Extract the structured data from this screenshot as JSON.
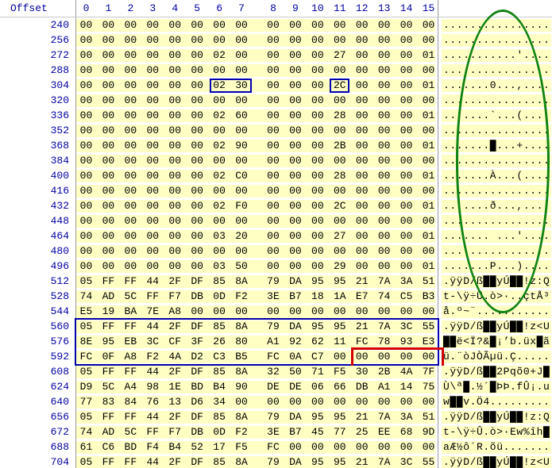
{
  "header": {
    "offset_label": "Offset",
    "columns": [
      "0",
      "1",
      "2",
      "3",
      "4",
      "5",
      "6",
      "7",
      "8",
      "9",
      "10",
      "11",
      "12",
      "13",
      "14",
      "15"
    ]
  },
  "rows": [
    {
      "offset": "240",
      "bytes": [
        "00",
        "00",
        "00",
        "00",
        "00",
        "00",
        "00",
        "00",
        "00",
        "00",
        "00",
        "00",
        "00",
        "00",
        "00",
        "00"
      ],
      "ascii": "................"
    },
    {
      "offset": "256",
      "bytes": [
        "00",
        "00",
        "00",
        "00",
        "00",
        "00",
        "00",
        "00",
        "00",
        "00",
        "00",
        "00",
        "00",
        "00",
        "00",
        "00"
      ],
      "ascii": "................"
    },
    {
      "offset": "272",
      "bytes": [
        "00",
        "00",
        "00",
        "00",
        "00",
        "00",
        "02",
        "00",
        "00",
        "00",
        "00",
        "27",
        "00",
        "00",
        "00",
        "01"
      ],
      "ascii": "...........'...."
    },
    {
      "offset": "288",
      "bytes": [
        "00",
        "00",
        "00",
        "00",
        "00",
        "00",
        "00",
        "00",
        "00",
        "00",
        "00",
        "00",
        "00",
        "00",
        "00",
        "00"
      ],
      "ascii": "................"
    },
    {
      "offset": "304",
      "bytes": [
        "00",
        "00",
        "00",
        "00",
        "00",
        "00",
        "02",
        "30",
        "00",
        "00",
        "00",
        "2C",
        "00",
        "00",
        "00",
        "01"
      ],
      "ascii": ".......0...,...."
    },
    {
      "offset": "320",
      "bytes": [
        "00",
        "00",
        "00",
        "00",
        "00",
        "00",
        "00",
        "00",
        "00",
        "00",
        "00",
        "00",
        "00",
        "00",
        "00",
        "00"
      ],
      "ascii": "................"
    },
    {
      "offset": "336",
      "bytes": [
        "00",
        "00",
        "00",
        "00",
        "00",
        "00",
        "02",
        "60",
        "00",
        "00",
        "00",
        "28",
        "00",
        "00",
        "00",
        "01"
      ],
      "ascii": ".......`...(...."
    },
    {
      "offset": "352",
      "bytes": [
        "00",
        "00",
        "00",
        "00",
        "00",
        "00",
        "00",
        "00",
        "00",
        "00",
        "00",
        "00",
        "00",
        "00",
        "00",
        "00"
      ],
      "ascii": "................"
    },
    {
      "offset": "368",
      "bytes": [
        "00",
        "00",
        "00",
        "00",
        "00",
        "00",
        "02",
        "90",
        "00",
        "00",
        "00",
        "2B",
        "00",
        "00",
        "00",
        "01"
      ],
      "ascii": ".......█...+...."
    },
    {
      "offset": "384",
      "bytes": [
        "00",
        "00",
        "00",
        "00",
        "00",
        "00",
        "00",
        "00",
        "00",
        "00",
        "00",
        "00",
        "00",
        "00",
        "00",
        "00"
      ],
      "ascii": "................"
    },
    {
      "offset": "400",
      "bytes": [
        "00",
        "00",
        "00",
        "00",
        "00",
        "00",
        "02",
        "C0",
        "00",
        "00",
        "00",
        "28",
        "00",
        "00",
        "00",
        "01"
      ],
      "ascii": ".......À...(...."
    },
    {
      "offset": "416",
      "bytes": [
        "00",
        "00",
        "00",
        "00",
        "00",
        "00",
        "00",
        "00",
        "00",
        "00",
        "00",
        "00",
        "00",
        "00",
        "00",
        "00"
      ],
      "ascii": "................"
    },
    {
      "offset": "432",
      "bytes": [
        "00",
        "00",
        "00",
        "00",
        "00",
        "00",
        "02",
        "F0",
        "00",
        "00",
        "00",
        "2C",
        "00",
        "00",
        "00",
        "01"
      ],
      "ascii": ".......ð...,...."
    },
    {
      "offset": "448",
      "bytes": [
        "00",
        "00",
        "00",
        "00",
        "00",
        "00",
        "00",
        "00",
        "00",
        "00",
        "00",
        "00",
        "00",
        "00",
        "00",
        "00"
      ],
      "ascii": "................"
    },
    {
      "offset": "464",
      "bytes": [
        "00",
        "00",
        "00",
        "00",
        "00",
        "00",
        "03",
        "20",
        "00",
        "00",
        "00",
        "27",
        "00",
        "00",
        "00",
        "01"
      ],
      "ascii": "....... ...'...."
    },
    {
      "offset": "480",
      "bytes": [
        "00",
        "00",
        "00",
        "00",
        "00",
        "00",
        "00",
        "00",
        "00",
        "00",
        "00",
        "00",
        "00",
        "00",
        "00",
        "00"
      ],
      "ascii": "................"
    },
    {
      "offset": "496",
      "bytes": [
        "00",
        "00",
        "00",
        "00",
        "00",
        "00",
        "03",
        "50",
        "00",
        "00",
        "00",
        "29",
        "00",
        "00",
        "00",
        "01"
      ],
      "ascii": ".......P...)...."
    },
    {
      "offset": "512",
      "bytes": [
        "05",
        "FF",
        "FF",
        "44",
        "2F",
        "DF",
        "85",
        "8A",
        "79",
        "DA",
        "95",
        "95",
        "21",
        "7A",
        "3A",
        "51"
      ],
      "ascii": ".ÿÿD/ß██yÚ██!z:Q"
    },
    {
      "offset": "528",
      "bytes": [
        "74",
        "AD",
        "5C",
        "FF",
        "F7",
        "DB",
        "0D",
        "F2",
        "3E",
        "B7",
        "18",
        "1A",
        "E7",
        "74",
        "C5",
        "B3"
      ],
      "ascii": "t-\\ÿ÷Û.ò>·..çtÅ³"
    },
    {
      "offset": "544",
      "bytes": [
        "E5",
        "19",
        "BA",
        "7E",
        "A8",
        "00",
        "00",
        "00",
        "00",
        "00",
        "00",
        "00",
        "00",
        "00",
        "00",
        "00"
      ],
      "ascii": "å.º~¨..........."
    },
    {
      "offset": "560",
      "bytes": [
        "05",
        "FF",
        "FF",
        "44",
        "2F",
        "DF",
        "85",
        "8A",
        "79",
        "DA",
        "95",
        "95",
        "21",
        "7A",
        "3C",
        "55"
      ],
      "ascii": ".ÿÿD/ß██yÚ██!z<U"
    },
    {
      "offset": "576",
      "bytes": [
        "8E",
        "95",
        "EB",
        "3C",
        "CF",
        "3F",
        "26",
        "80",
        "A1",
        "92",
        "62",
        "11",
        "FC",
        "78",
        "93",
        "E3"
      ],
      "ascii": "██ë<Ï?&█¡’b.üx█ã"
    },
    {
      "offset": "592",
      "bytes": [
        "FC",
        "0F",
        "A8",
        "F2",
        "4A",
        "D2",
        "C3",
        "B5",
        "FC",
        "0A",
        "C7",
        "00",
        "00",
        "00",
        "00",
        "00"
      ],
      "ascii": "ü.¨òJÒÃµü.Ç....."
    },
    {
      "offset": "608",
      "bytes": [
        "05",
        "FF",
        "FF",
        "44",
        "2F",
        "DF",
        "85",
        "8A",
        "32",
        "50",
        "71",
        "F5",
        "30",
        "2B",
        "4A",
        "7F"
      ],
      "ascii": ".ÿÿD/ß██2Pqõ0+J█"
    },
    {
      "offset": "624",
      "bytes": [
        "D9",
        "5C",
        "A4",
        "98",
        "1E",
        "BD",
        "B4",
        "90",
        "DE",
        "DE",
        "06",
        "66",
        "DB",
        "A1",
        "14",
        "75"
      ],
      "ascii": "Ù\\ª█.½´█ÞÞ.fÛ¡.u"
    },
    {
      "offset": "640",
      "bytes": [
        "77",
        "83",
        "84",
        "76",
        "13",
        "D6",
        "34",
        "00",
        "00",
        "00",
        "00",
        "00",
        "00",
        "00",
        "00",
        "00"
      ],
      "ascii": "w██v.Ö4........."
    },
    {
      "offset": "656",
      "bytes": [
        "05",
        "FF",
        "FF",
        "44",
        "2F",
        "DF",
        "85",
        "8A",
        "79",
        "DA",
        "95",
        "95",
        "21",
        "7A",
        "3A",
        "51"
      ],
      "ascii": ".ÿÿD/ß██yÚ██!z:Q"
    },
    {
      "offset": "672",
      "bytes": [
        "74",
        "AD",
        "5C",
        "FF",
        "F7",
        "DB",
        "0D",
        "F2",
        "3E",
        "B7",
        "45",
        "77",
        "25",
        "EE",
        "68",
        "9D"
      ],
      "ascii": "t-\\ÿ÷Û.ò>·Ew%îh█"
    },
    {
      "offset": "688",
      "bytes": [
        "61",
        "C6",
        "BD",
        "F4",
        "B4",
        "52",
        "17",
        "F5",
        "FC",
        "00",
        "00",
        "00",
        "00",
        "00",
        "00",
        "00"
      ],
      "ascii": "aÆ½ô´R.õü......."
    },
    {
      "offset": "704",
      "bytes": [
        "05",
        "FF",
        "FF",
        "44",
        "2F",
        "DF",
        "85",
        "8A",
        "79",
        "DA",
        "95",
        "95",
        "21",
        "7A",
        "3C",
        "55"
      ],
      "ascii": ".ÿÿD/ß██yÚ██!z<U"
    }
  ],
  "annotations": {
    "byte_boxes": [
      {
        "row": "304",
        "col_start": 6,
        "col_end": 7
      },
      {
        "row": "304",
        "col_start": 11,
        "col_end": 11
      }
    ],
    "block_box": {
      "row_start": "560",
      "row_end": "592",
      "col_start": 0,
      "col_end": 15
    },
    "red_mark": {
      "row": "592",
      "col_start": 12,
      "col_end": 15
    },
    "ellipse": {
      "row_start": "240",
      "row_end": "544",
      "area": "ascii"
    }
  },
  "colors": {
    "stripe_yellow": "#FFFFC4",
    "header_blue": "#0000A0",
    "selection_blue": "#0000AA",
    "mark_red": "#D40000",
    "ellipse_green": "#128312"
  }
}
